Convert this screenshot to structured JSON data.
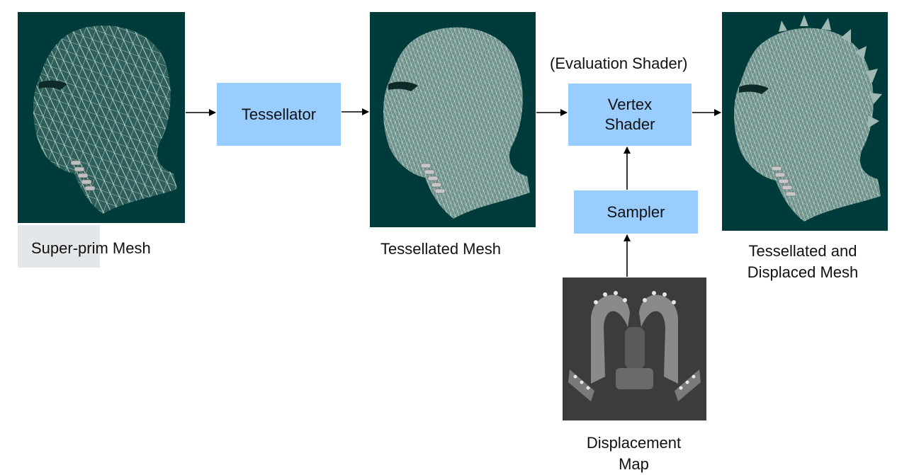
{
  "nodes": {
    "tessellator": "Tessellator",
    "vertex_shader": "Vertex\nShader",
    "sampler": "Sampler",
    "evaluation_note": "(Evaluation Shader)"
  },
  "captions": {
    "super_prim": "Super-prim Mesh",
    "tessellated": "Tessellated Mesh",
    "displaced": "Tessellated and\nDisplaced Mesh",
    "displacement_map": "Displacement\nMap"
  },
  "images": {
    "super_prim": "wireframe-head-coarse",
    "tessellated": "wireframe-head-dense",
    "displaced": "wireframe-head-spiked",
    "displacement_map": "displacement-texture"
  },
  "colors": {
    "panel_bg": "#003b3b",
    "box_fill": "#99ccff",
    "mesh_line": "#cfe9e0",
    "arrow": "#000000"
  }
}
